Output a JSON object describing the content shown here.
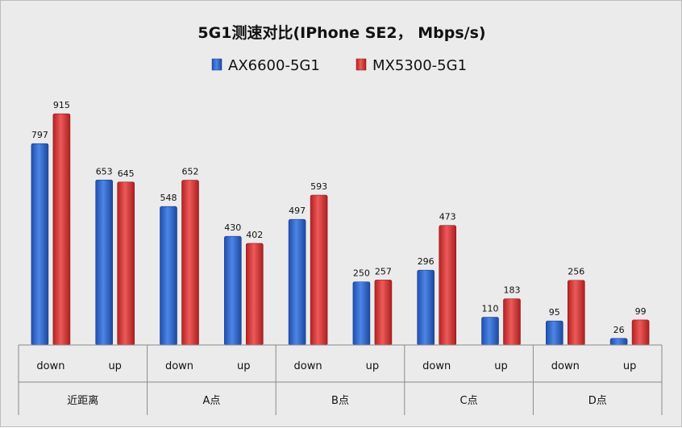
{
  "chart_data": {
    "type": "bar",
    "title": "5G1测速对比(IPhone SE2， Mbps/s)",
    "groups": [
      "近距离",
      "A点",
      "B点",
      "C点",
      "D点"
    ],
    "subcategories": [
      "down",
      "up"
    ],
    "series": [
      {
        "name": "AX6600-5G1",
        "color": "#2f63c6",
        "values": [
          797,
          653,
          548,
          430,
          497,
          250,
          296,
          110,
          95,
          26
        ]
      },
      {
        "name": "MX5300-5G1",
        "color": "#d23a3a",
        "values": [
          915,
          645,
          652,
          402,
          593,
          257,
          473,
          183,
          256,
          99
        ]
      }
    ],
    "ylim": [
      0,
      1000
    ],
    "grid": false,
    "legend": "top-center"
  }
}
